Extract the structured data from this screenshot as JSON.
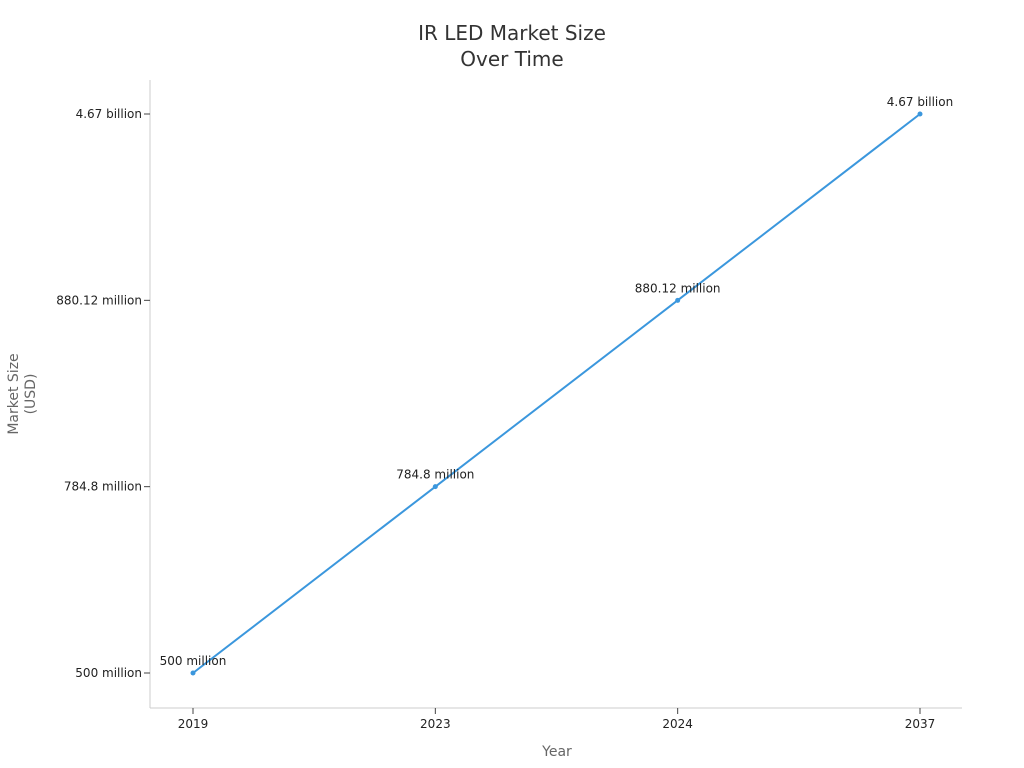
{
  "chart_data": {
    "type": "line",
    "title_lines": [
      "IR LED Market Size",
      "Over Time"
    ],
    "xlabel": "Year",
    "ylabel_lines": [
      "Market Size",
      "(USD)"
    ],
    "categories": [
      "2019",
      "2023",
      "2024",
      "2037"
    ],
    "series": [
      {
        "values": [
          500000000,
          784800000,
          880120000,
          4670000000
        ],
        "labels": [
          "500 million",
          "784.8 million",
          "880.12 million",
          "4.67 billion"
        ]
      }
    ],
    "y_tick_labels": [
      "500 million",
      "784.8 million",
      "880.12 million",
      "4.67 billion"
    ],
    "y_scale": "categorical-values",
    "grid": false,
    "legend": "none",
    "line_color": "#3b97dd"
  }
}
